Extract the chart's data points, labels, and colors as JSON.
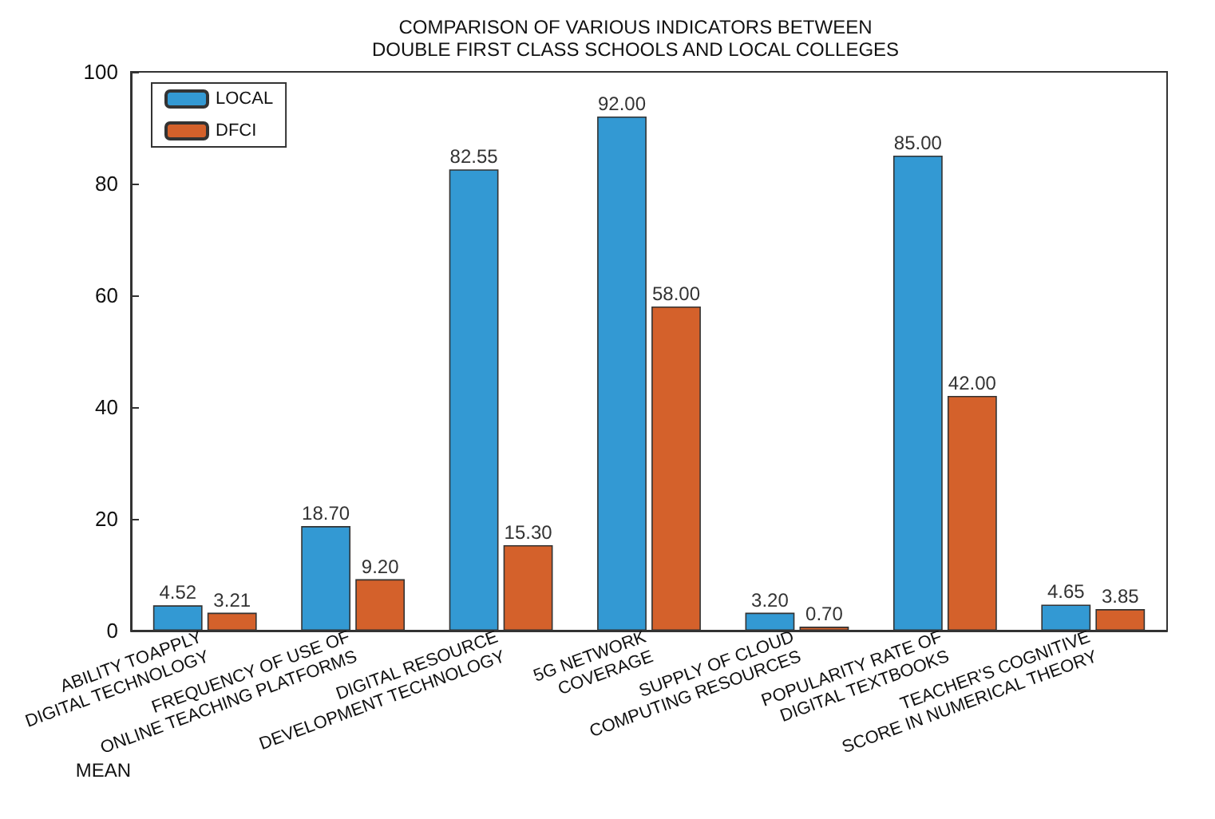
{
  "chart_data": {
    "type": "bar",
    "title": "COMPARISON OF VARIOUS INDICATORS BETWEEN\nDOUBLE FIRST CLASS SCHOOLS AND LOCAL COLLEGES",
    "ylabel": "MEAN",
    "categories": [
      "ABILITY TOAPPLY\nDIGITAL TECHNOLOGY",
      "FREQUENCY OF USE OF\nONLINE TEACHING PLATFORMS",
      "DIGITAL RESOURCE\nDEVELOPMENT TECHNOLOGY",
      "5G NETWORK\nCOVERAGE",
      "SUPPLY OF CLOUD\nCOMPUTING RESOURCES",
      "POPULARITY RATE OF\nDIGITAL TEXTBOOKS",
      "TEACHER'S COGNITIVE\nSCORE IN NUMERICAL THEORY"
    ],
    "series": [
      {
        "name": "LOCAL",
        "color": "#3399d3",
        "values": [
          4.52,
          18.7,
          82.55,
          92.0,
          3.2,
          85.0,
          4.65
        ]
      },
      {
        "name": "DFCI",
        "color": "#d4612b",
        "values": [
          3.21,
          9.2,
          15.3,
          58.0,
          0.7,
          42.0,
          3.85
        ]
      }
    ],
    "value_labels": [
      [
        "4.52",
        "18.70",
        "82.55",
        "92.00",
        "3.20",
        "85.00",
        "4.65"
      ],
      [
        "3.21",
        "9.20",
        "15.30",
        "58.00",
        "0.70",
        "42.00",
        "3.85"
      ]
    ],
    "ylim": [
      0,
      100
    ],
    "yticks": [
      0,
      20,
      40,
      60,
      80,
      100
    ],
    "grid": false,
    "legend": "top left"
  }
}
